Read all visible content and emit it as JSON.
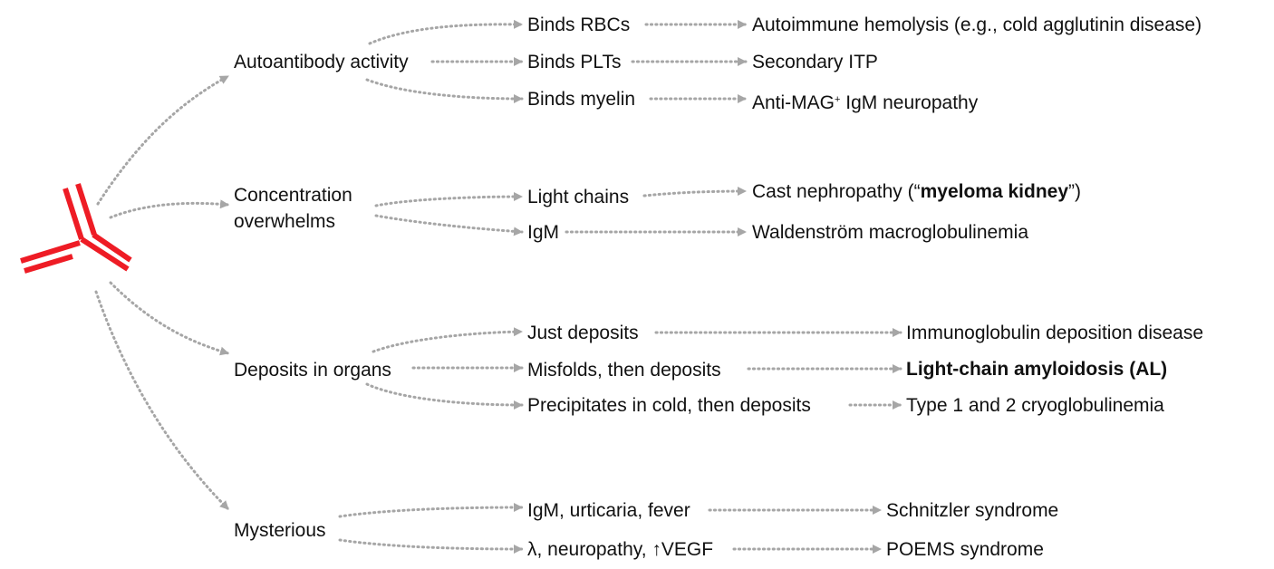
{
  "icon": "antibody-icon",
  "colors": {
    "antibody": "#ee1c25",
    "connector": "#a6a6a6",
    "text": "#111111"
  },
  "categories": {
    "autoantibody": "Autoantibody activity",
    "concentration": "Concentration overwhelms",
    "deposits": "Deposits in organs",
    "mysterious": "Mysterious"
  },
  "mechanisms": {
    "binds_rbcs": "Binds RBCs",
    "binds_plts": "Binds PLTs",
    "binds_myelin": "Binds myelin",
    "light_chains": "Light chains",
    "igm": "IgM",
    "just_deposits": "Just deposits",
    "misfolds": "Misfolds, then deposits",
    "precipitates": "Precipitates in cold, then deposits",
    "igm_urticaria": "IgM, urticaria, fever",
    "lambda_neuropathy": "λ, neuropathy, ↑VEGF"
  },
  "outcomes": {
    "hemolysis": "Autoimmune hemolysis (e.g., cold agglutinin disease)",
    "itp": "Secondary ITP",
    "anti_mag_pre": "Anti-MAG",
    "anti_mag_sup": "+",
    "anti_mag_post": " IgM neuropathy",
    "cast_pre": "Cast nephropathy (“",
    "cast_bold": "myeloma kidney",
    "cast_post": "”)",
    "waldenstrom": "Waldenström macroglobulinemia",
    "igdd": "Immunoglobulin deposition disease",
    "al": "Light-chain amyloidosis (AL)",
    "cryo": "Type 1 and 2 cryoglobulinemia",
    "schnitzler": "Schnitzler syndrome",
    "poems": "POEMS syndrome"
  }
}
